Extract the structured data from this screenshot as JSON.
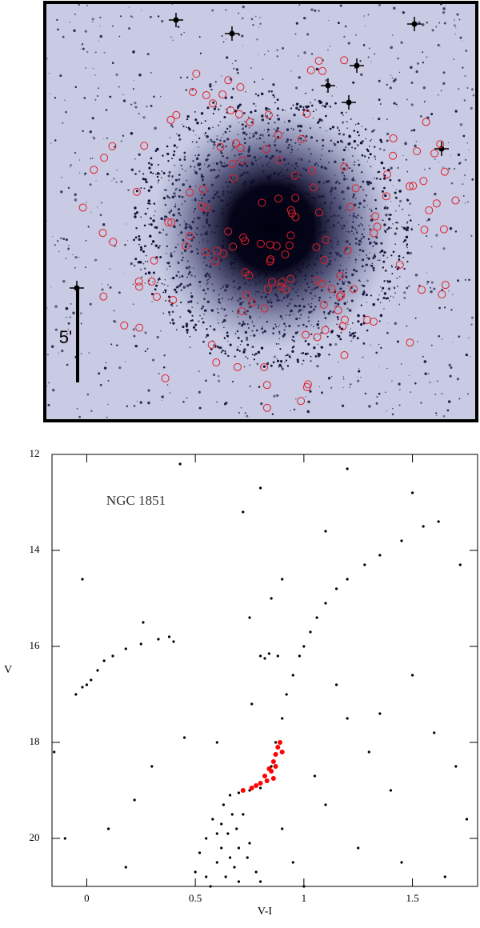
{
  "image": {
    "scale_label": "5'"
  },
  "chart_data": {
    "type": "scatter",
    "annotation": "NGC 1851",
    "xlabel": "V-I",
    "ylabel": "V",
    "xlim": [
      -0.16,
      1.8
    ],
    "ylim": [
      12,
      21
    ],
    "y_inverted": true,
    "xticks": [
      0,
      0.5,
      1,
      1.5
    ],
    "yticks": [
      12,
      14,
      16,
      18,
      20
    ],
    "series": [
      {
        "color": "#000000",
        "x": [
          0.55,
          0.6,
          0.62,
          0.65,
          0.68,
          0.7,
          0.58,
          0.63,
          0.66,
          0.72,
          0.75,
          0.78,
          0.52,
          0.57,
          0.64,
          0.69,
          0.6,
          0.66,
          0.74,
          0.8,
          0.5,
          0.62,
          0.7,
          0.67,
          0.55,
          0.7,
          0.75,
          0.8,
          0.85,
          0.87,
          0.9,
          0.92,
          0.95,
          0.98,
          1.0,
          1.03,
          1.06,
          1.1,
          1.15,
          1.2,
          1.28,
          1.35,
          1.45,
          1.55,
          1.62,
          0.8,
          0.84,
          0.88,
          0.82,
          -0.05,
          -0.02,
          0.02,
          0.05,
          0.08,
          0.12,
          0.18,
          0.25,
          0.33,
          0.38,
          0.0,
          0.85,
          0.9,
          0.75,
          0.72,
          0.8,
          0.43,
          0.76,
          0.45,
          0.3,
          0.22,
          0.1,
          0.18,
          -0.15,
          -0.1,
          -0.02,
          1.2,
          1.3,
          1.4,
          1.5,
          1.6,
          1.7,
          1.75,
          1.1,
          1.25,
          1.45,
          1.65,
          1.05,
          1.15,
          1.35,
          0.95,
          1.2,
          1.5,
          1.72,
          1.1,
          0.4,
          0.26,
          0.6,
          0.9,
          1.0
        ],
        "y": [
          20.8,
          20.5,
          20.2,
          19.9,
          20.6,
          20.9,
          19.6,
          19.3,
          19.1,
          19.5,
          20.1,
          20.7,
          20.3,
          21.0,
          20.8,
          19.8,
          19.9,
          20.4,
          20.4,
          20.9,
          20.7,
          19.7,
          20.2,
          19.5,
          20.0,
          19.05,
          19.0,
          18.95,
          18.5,
          18.0,
          17.5,
          17.0,
          16.6,
          16.2,
          16.0,
          15.7,
          15.4,
          15.1,
          14.8,
          14.6,
          14.3,
          14.1,
          13.8,
          13.5,
          13.4,
          16.2,
          16.15,
          16.2,
          16.25,
          17.0,
          16.85,
          16.7,
          16.5,
          16.3,
          16.2,
          16.05,
          15.95,
          15.85,
          15.8,
          16.8,
          15.0,
          14.6,
          15.4,
          13.2,
          12.7,
          12.2,
          17.2,
          17.9,
          18.5,
          19.2,
          19.8,
          20.6,
          18.2,
          20.0,
          14.6,
          17.5,
          18.2,
          19.0,
          16.6,
          17.8,
          18.5,
          19.6,
          19.3,
          20.2,
          20.5,
          20.8,
          18.7,
          16.8,
          17.4,
          20.5,
          12.3,
          12.8,
          14.3,
          13.6,
          15.9,
          15.5,
          18.0,
          19.8,
          21.0
        ]
      },
      {
        "color": "#ff0000",
        "x": [
          0.72,
          0.76,
          0.8,
          0.82,
          0.84,
          0.86,
          0.87,
          0.88,
          0.89,
          0.85,
          0.83,
          0.87,
          0.9,
          0.78,
          0.86
        ],
        "y": [
          19.0,
          18.95,
          18.85,
          18.7,
          18.55,
          18.4,
          18.25,
          18.1,
          18.0,
          18.6,
          18.8,
          18.5,
          18.2,
          18.9,
          18.75
        ]
      }
    ]
  }
}
